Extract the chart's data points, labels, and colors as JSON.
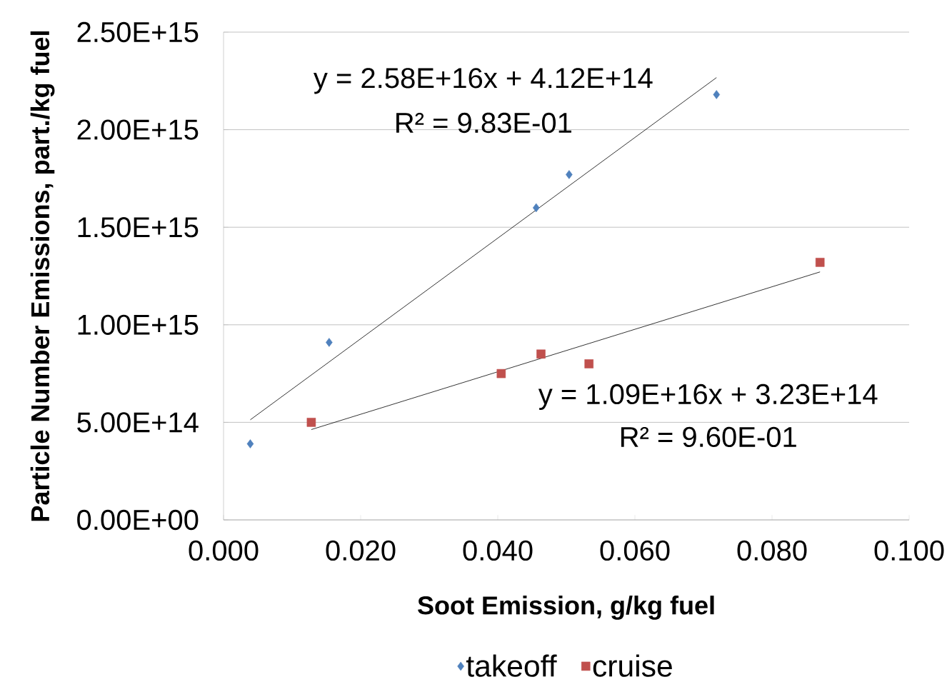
{
  "chart_data": {
    "type": "scatter",
    "xlabel": "Soot Emission, g/kg fuel",
    "ylabel": "Particle Number Emissions, part./kg fuel",
    "series": [
      {
        "name": "takeoff",
        "marker": "diamond",
        "color": "#4f81bd",
        "x": [
          0.0039,
          0.0154,
          0.0456,
          0.0504,
          0.0719
        ],
        "values": [
          390000000000000.0,
          910000000000000.0,
          1600000000000000.0,
          1770000000000000.0,
          2180000000000000.0
        ]
      },
      {
        "name": "cruise",
        "marker": "square",
        "color": "#c0504d",
        "x": [
          0.0128,
          0.0405,
          0.0463,
          0.0533,
          0.087
        ],
        "values": [
          500000000000000.0,
          750000000000000.0,
          850000000000000.0,
          800000000000000.0,
          1320000000000000.0
        ]
      },
      {
        "type": "line",
        "color": "#000000",
        "x": [
          0.0039,
          0.0719
        ],
        "values": [
          513000000000000.0,
          2267000000000000.0
        ]
      },
      {
        "type": "line",
        "color": "#000000",
        "x": [
          0.0128,
          0.087
        ],
        "values": [
          463000000000000.0,
          1271000000000000.0
        ]
      }
    ],
    "annotations": [
      "y = 2.58E+16x + 4.12E+14",
      "R² = 9.83E-01",
      "y = 1.09E+16x + 3.23E+14",
      "R² = 9.60E-01"
    ],
    "xlim": [
      0,
      0.1
    ],
    "ylim": [
      0,
      2500000000000000.0
    ],
    "xticks": [
      {
        "value": 0,
        "label": "0.000"
      },
      {
        "value": 0.02,
        "label": "0.020"
      },
      {
        "value": 0.04,
        "label": "0.040"
      },
      {
        "value": 0.06,
        "label": "0.060"
      },
      {
        "value": 0.08,
        "label": "0.080"
      },
      {
        "value": 0.1,
        "label": "0.100"
      }
    ],
    "yticks": [
      {
        "value": 0,
        "label": "0.00E+00"
      },
      {
        "value": 500000000000000.0,
        "label": "5.00E+14"
      },
      {
        "value": 1000000000000000.0,
        "label": "1.00E+15"
      },
      {
        "value": 1500000000000000.0,
        "label": "1.50E+15"
      },
      {
        "value": 2000000000000000.0,
        "label": "2.00E+15"
      },
      {
        "value": 2500000000000000.0,
        "label": "2.50E+15"
      }
    ],
    "grid": "y",
    "legend": "bottom"
  }
}
